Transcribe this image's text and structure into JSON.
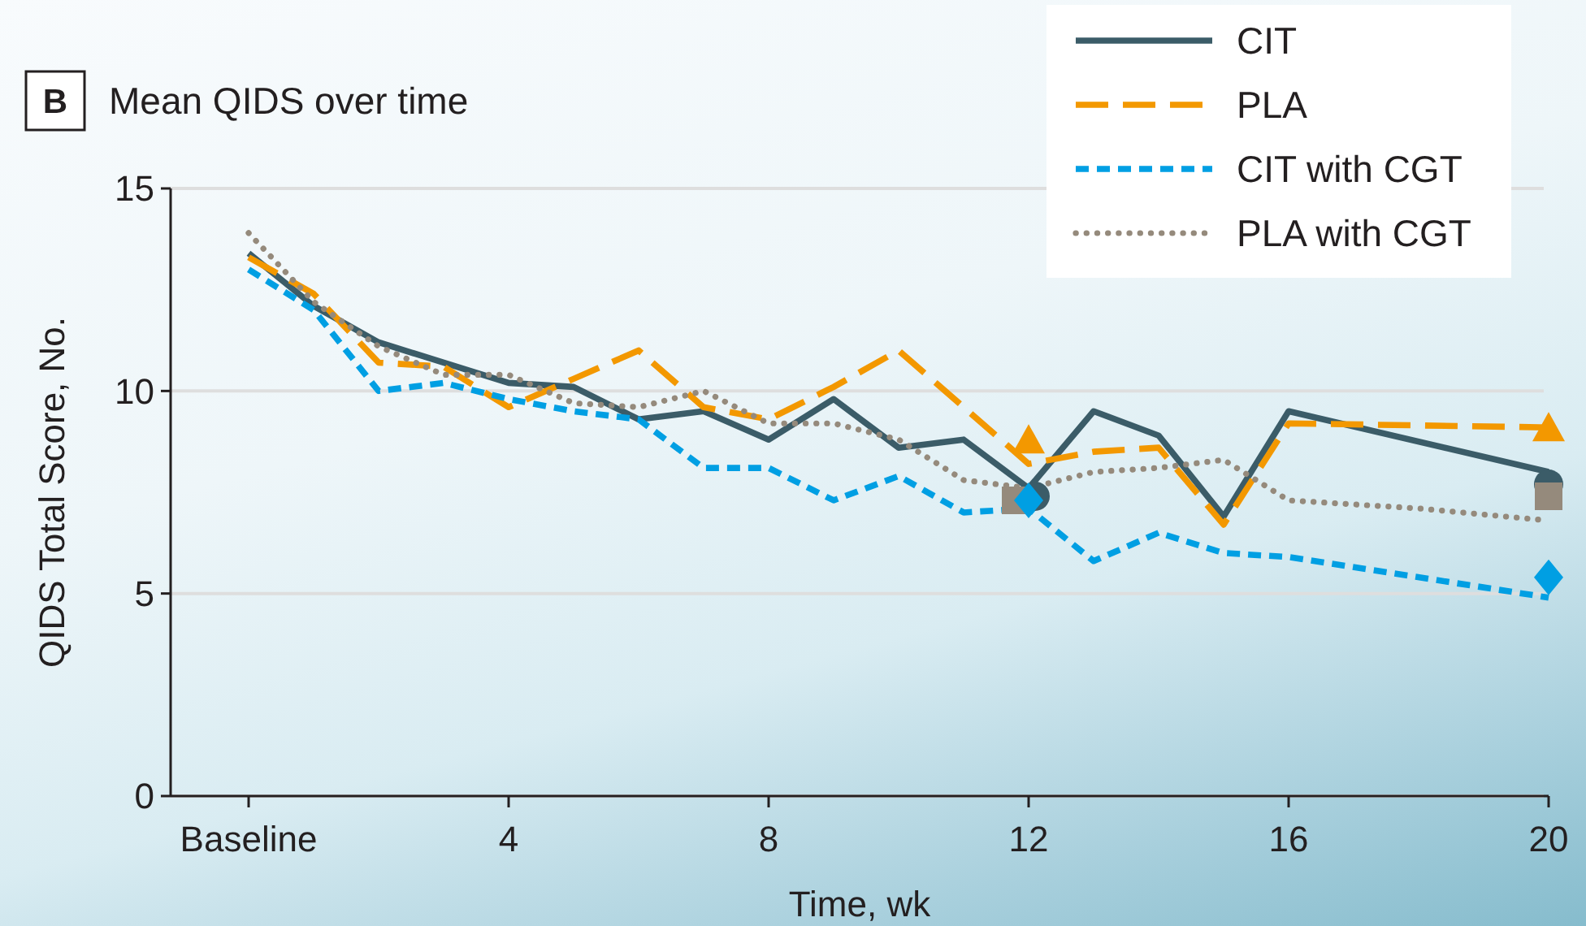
{
  "chart_data": {
    "type": "line",
    "title": "Mean QIDS over time",
    "xlabel": "Time, wk",
    "ylabel": "QIDS Total Score, No.",
    "annotations": [
      "B"
    ],
    "xlim": [
      -1.2,
      20
    ],
    "xticks": [
      {
        "value": 0,
        "label": "Baseline"
      },
      4,
      8,
      12,
      16,
      20
    ],
    "ylim": [
      0,
      15
    ],
    "yticks": [
      0,
      5,
      10,
      15
    ],
    "grid": "y",
    "legend": "top right",
    "series": [
      {
        "name": "CIT",
        "color": "#3b5c68",
        "line_style": "solid",
        "x": [
          0,
          1,
          2,
          3,
          4,
          5,
          6,
          7,
          8,
          9,
          10,
          11,
          12,
          13,
          14,
          15,
          16,
          20
        ],
        "values": [
          13.4,
          12.1,
          11.2,
          10.7,
          10.2,
          10.1,
          9.3,
          9.5,
          8.8,
          9.8,
          8.6,
          8.8,
          7.6,
          9.5,
          8.9,
          6.9,
          9.5,
          8.0
        ]
      },
      {
        "name": "PLA",
        "color": "#f39800",
        "line_style": "dashed",
        "x": [
          0,
          1,
          2,
          3,
          4,
          5,
          6,
          7,
          8,
          9,
          10,
          11,
          12,
          13,
          14,
          15,
          16,
          20
        ],
        "values": [
          13.3,
          12.4,
          10.7,
          10.6,
          9.6,
          10.3,
          11.0,
          9.6,
          9.3,
          10.1,
          11.0,
          9.6,
          8.2,
          8.5,
          8.6,
          6.7,
          9.2,
          9.1
        ]
      },
      {
        "name": "CIT with CGT",
        "color": "#009fe3",
        "line_style": "dashed",
        "x": [
          0,
          1,
          2,
          3,
          4,
          5,
          6,
          7,
          8,
          9,
          10,
          11,
          12,
          13,
          14,
          15,
          16,
          20
        ],
        "values": [
          13.0,
          12.0,
          10.0,
          10.2,
          9.8,
          9.5,
          9.3,
          8.1,
          8.1,
          7.3,
          7.9,
          7.0,
          7.1,
          5.8,
          6.5,
          6.0,
          5.9,
          4.9
        ]
      },
      {
        "name": "PLA with CGT",
        "color": "#958a7c",
        "line_style": "dotted",
        "x": [
          0,
          1,
          2,
          3,
          4,
          5,
          6,
          7,
          8,
          9,
          10,
          11,
          12,
          13,
          14,
          15,
          16,
          18,
          20
        ],
        "values": [
          13.9,
          12.2,
          11.1,
          10.4,
          10.4,
          9.7,
          9.6,
          10.0,
          9.2,
          9.2,
          8.8,
          7.8,
          7.6,
          8.0,
          8.1,
          8.3,
          7.3,
          7.1,
          6.8
        ]
      },
      {
        "type": "scatter",
        "color": "#3b5c68",
        "marker": "circle",
        "x": [
          12.1,
          20
        ],
        "values": [
          7.4,
          7.7
        ]
      },
      {
        "type": "scatter",
        "color": "#f39800",
        "marker": "triangle",
        "x": [
          12,
          20
        ],
        "values": [
          8.7,
          9.0
        ]
      },
      {
        "type": "scatter",
        "color": "#958a7c",
        "marker": "square",
        "x": [
          11.8,
          20
        ],
        "values": [
          7.3,
          7.4
        ]
      },
      {
        "type": "scatter",
        "color": "#009fe3",
        "marker": "diamond",
        "x": [
          12,
          20
        ],
        "values": [
          7.3,
          5.4
        ]
      }
    ]
  }
}
